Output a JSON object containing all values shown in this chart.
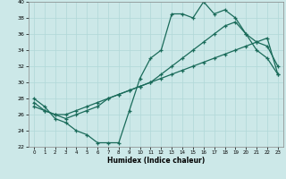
{
  "xlabel": "Humidex (Indice chaleur)",
  "xlim": [
    -0.5,
    23.5
  ],
  "ylim": [
    22,
    40
  ],
  "yticks": [
    22,
    24,
    26,
    28,
    30,
    32,
    34,
    36,
    38,
    40
  ],
  "xticks": [
    0,
    1,
    2,
    3,
    4,
    5,
    6,
    7,
    8,
    9,
    10,
    11,
    12,
    13,
    14,
    15,
    16,
    17,
    18,
    19,
    20,
    21,
    22,
    23
  ],
  "bg_color": "#cce8e8",
  "line_color": "#1a6b5a",
  "grid_color": "#b0d8d8",
  "line1_x": [
    0,
    1,
    2,
    3,
    4,
    5,
    6,
    7,
    8,
    9,
    10,
    11,
    12,
    13,
    14,
    15,
    16,
    17,
    18,
    19,
    20,
    21,
    22,
    23
  ],
  "line1_y": [
    28,
    27,
    25.5,
    25,
    24,
    23.5,
    22.5,
    22.5,
    22.5,
    26.5,
    30.5,
    33,
    34,
    38.5,
    38.5,
    38,
    40,
    38.5,
    39,
    38,
    36,
    34,
    33,
    31
  ],
  "line2_x": [
    0,
    1,
    2,
    3,
    4,
    5,
    6,
    7,
    8,
    9,
    10,
    11,
    12,
    13,
    14,
    15,
    16,
    17,
    18,
    19,
    20,
    21,
    22,
    23
  ],
  "line2_y": [
    27.5,
    26.5,
    26,
    25.5,
    26,
    26.5,
    27,
    28,
    28.5,
    29,
    29.5,
    30,
    31,
    32,
    33,
    34,
    35,
    36,
    37,
    37.5,
    36,
    35,
    34.5,
    32
  ],
  "line3_x": [
    0,
    1,
    2,
    3,
    4,
    5,
    6,
    7,
    8,
    9,
    10,
    11,
    12,
    13,
    14,
    15,
    16,
    17,
    18,
    19,
    20,
    21,
    22,
    23
  ],
  "line3_y": [
    27,
    26.5,
    26,
    26,
    26.5,
    27,
    27.5,
    28,
    28.5,
    29,
    29.5,
    30,
    30.5,
    31,
    31.5,
    32,
    32.5,
    33,
    33.5,
    34,
    34.5,
    35,
    35.5,
    31
  ]
}
